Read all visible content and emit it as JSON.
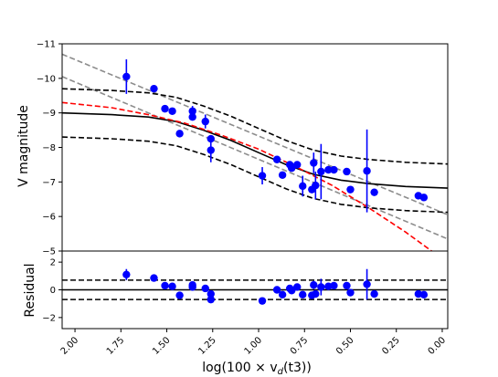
{
  "chart_data": [
    {
      "panel": "main",
      "type": "scatter",
      "xlabel": "log(100 × v",
      "xlabel_sub": "d",
      "xlabel_tail": "(t3))",
      "ylabel": "V magnitude",
      "xlim": [
        2.07,
        -0.03
      ],
      "ylim": [
        -5,
        -11
      ],
      "yticks": [
        -11,
        -10,
        -9,
        -8,
        -7,
        -6,
        -5
      ],
      "ytick_labels": [
        "−11",
        "−10",
        "−9",
        "−8",
        "−7",
        "−6",
        "−5"
      ],
      "xticks": [
        2.0,
        1.75,
        1.5,
        1.25,
        1.0,
        0.75,
        0.5,
        0.25,
        0.0
      ],
      "xtick_labels": [
        "2.00",
        "1.75",
        "1.50",
        "1.25",
        "1.00",
        "0.75",
        "0.50",
        "0.25",
        "0.00"
      ],
      "points": [
        {
          "x": 1.72,
          "y": -10.05,
          "err": 0.5
        },
        {
          "x": 1.57,
          "y": -9.7
        },
        {
          "x": 1.51,
          "y": -9.12
        },
        {
          "x": 1.47,
          "y": -9.05
        },
        {
          "x": 1.43,
          "y": -8.4
        },
        {
          "x": 1.36,
          "y": -9.05,
          "err": 0.15
        },
        {
          "x": 1.36,
          "y": -8.88
        },
        {
          "x": 1.29,
          "y": -8.75,
          "err": 0.2
        },
        {
          "x": 1.26,
          "y": -8.25
        },
        {
          "x": 1.26,
          "y": -7.92,
          "err": 0.35
        },
        {
          "x": 0.98,
          "y": -7.18,
          "err": 0.25
        },
        {
          "x": 0.9,
          "y": -7.65
        },
        {
          "x": 0.87,
          "y": -7.2
        },
        {
          "x": 0.83,
          "y": -7.5
        },
        {
          "x": 0.82,
          "y": -7.4
        },
        {
          "x": 0.79,
          "y": -7.5
        },
        {
          "x": 0.76,
          "y": -6.88,
          "err": 0.3
        },
        {
          "x": 0.71,
          "y": -6.78
        },
        {
          "x": 0.7,
          "y": -7.55,
          "err": 0.3
        },
        {
          "x": 0.69,
          "y": -6.9,
          "err": 0.4
        },
        {
          "x": 0.66,
          "y": -7.3,
          "err": 0.8
        },
        {
          "x": 0.62,
          "y": -7.35
        },
        {
          "x": 0.59,
          "y": -7.35
        },
        {
          "x": 0.52,
          "y": -7.3
        },
        {
          "x": 0.5,
          "y": -6.78
        },
        {
          "x": 0.41,
          "y": -7.32,
          "err": 1.2
        },
        {
          "x": 0.37,
          "y": -6.7
        },
        {
          "x": 0.13,
          "y": -6.6
        },
        {
          "x": 0.1,
          "y": -6.55
        }
      ],
      "curves": {
        "model_solid": [
          [
            2.07,
            -9.0
          ],
          [
            1.8,
            -8.95
          ],
          [
            1.6,
            -8.88
          ],
          [
            1.45,
            -8.75
          ],
          [
            1.3,
            -8.5
          ],
          [
            1.15,
            -8.2
          ],
          [
            1.0,
            -7.85
          ],
          [
            0.85,
            -7.5
          ],
          [
            0.7,
            -7.22
          ],
          [
            0.55,
            -7.05
          ],
          [
            0.4,
            -6.95
          ],
          [
            0.2,
            -6.87
          ],
          [
            -0.03,
            -6.82
          ]
        ],
        "model_upper_dashed": [
          [
            2.07,
            -9.7
          ],
          [
            1.8,
            -9.65
          ],
          [
            1.6,
            -9.58
          ],
          [
            1.45,
            -9.45
          ],
          [
            1.3,
            -9.2
          ],
          [
            1.15,
            -8.9
          ],
          [
            1.0,
            -8.55
          ],
          [
            0.85,
            -8.2
          ],
          [
            0.7,
            -7.92
          ],
          [
            0.55,
            -7.75
          ],
          [
            0.4,
            -7.65
          ],
          [
            0.2,
            -7.57
          ],
          [
            -0.03,
            -7.52
          ]
        ],
        "model_lower_dashed": [
          [
            2.07,
            -8.3
          ],
          [
            1.8,
            -8.25
          ],
          [
            1.6,
            -8.18
          ],
          [
            1.45,
            -8.05
          ],
          [
            1.3,
            -7.8
          ],
          [
            1.15,
            -7.5
          ],
          [
            1.0,
            -7.15
          ],
          [
            0.85,
            -6.8
          ],
          [
            0.7,
            -6.52
          ],
          [
            0.55,
            -6.35
          ],
          [
            0.4,
            -6.25
          ],
          [
            0.2,
            -6.17
          ],
          [
            -0.03,
            -6.12
          ]
        ],
        "linear_fit_upper_gray": [
          [
            2.07,
            -10.7
          ],
          [
            -0.03,
            -6.05
          ]
        ],
        "linear_fit_lower_gray": [
          [
            2.07,
            -10.05
          ],
          [
            -0.03,
            -5.35
          ]
        ],
        "red_fit_dashed": [
          [
            2.07,
            -9.3
          ],
          [
            1.8,
            -9.15
          ],
          [
            1.6,
            -8.95
          ],
          [
            1.4,
            -8.7
          ],
          [
            1.2,
            -8.35
          ],
          [
            1.0,
            -7.95
          ],
          [
            0.8,
            -7.45
          ],
          [
            0.6,
            -6.9
          ],
          [
            0.4,
            -6.25
          ],
          [
            0.2,
            -5.55
          ],
          [
            0.05,
            -4.97
          ]
        ]
      }
    },
    {
      "panel": "residual",
      "type": "scatter",
      "ylabel": "Residual",
      "ylim": [
        -2.8,
        2.8
      ],
      "yticks": [
        2,
        0,
        -2
      ],
      "ytick_labels": [
        "2",
        "0",
        "−2"
      ],
      "reference_lines": [
        0,
        0.7,
        -0.7
      ],
      "points": [
        {
          "x": 1.72,
          "y": 1.1,
          "err": 0.4
        },
        {
          "x": 1.57,
          "y": 0.85
        },
        {
          "x": 1.51,
          "y": 0.3
        },
        {
          "x": 1.47,
          "y": 0.25
        },
        {
          "x": 1.43,
          "y": -0.4
        },
        {
          "x": 1.36,
          "y": 0.35
        },
        {
          "x": 1.36,
          "y": 0.2
        },
        {
          "x": 1.29,
          "y": 0.1
        },
        {
          "x": 1.26,
          "y": -0.3
        },
        {
          "x": 1.26,
          "y": -0.7
        },
        {
          "x": 0.98,
          "y": -0.8
        },
        {
          "x": 0.9,
          "y": 0.0
        },
        {
          "x": 0.87,
          "y": -0.35
        },
        {
          "x": 0.83,
          "y": 0.1
        },
        {
          "x": 0.82,
          "y": -0.05
        },
        {
          "x": 0.79,
          "y": 0.2
        },
        {
          "x": 0.76,
          "y": -0.35
        },
        {
          "x": 0.71,
          "y": -0.4
        },
        {
          "x": 0.7,
          "y": 0.35,
          "err": 0.3
        },
        {
          "x": 0.69,
          "y": -0.3
        },
        {
          "x": 0.66,
          "y": 0.2,
          "err": 0.6
        },
        {
          "x": 0.62,
          "y": 0.25
        },
        {
          "x": 0.59,
          "y": 0.3
        },
        {
          "x": 0.52,
          "y": 0.3
        },
        {
          "x": 0.5,
          "y": -0.2
        },
        {
          "x": 0.41,
          "y": 0.4,
          "err": 1.1
        },
        {
          "x": 0.37,
          "y": -0.3
        },
        {
          "x": 0.13,
          "y": -0.3
        },
        {
          "x": 0.1,
          "y": -0.35
        }
      ]
    }
  ],
  "colors": {
    "points": "#0000ff",
    "model_line": "#000000",
    "gray_lines": "#8c8c8c",
    "red_line": "#ff0000"
  }
}
